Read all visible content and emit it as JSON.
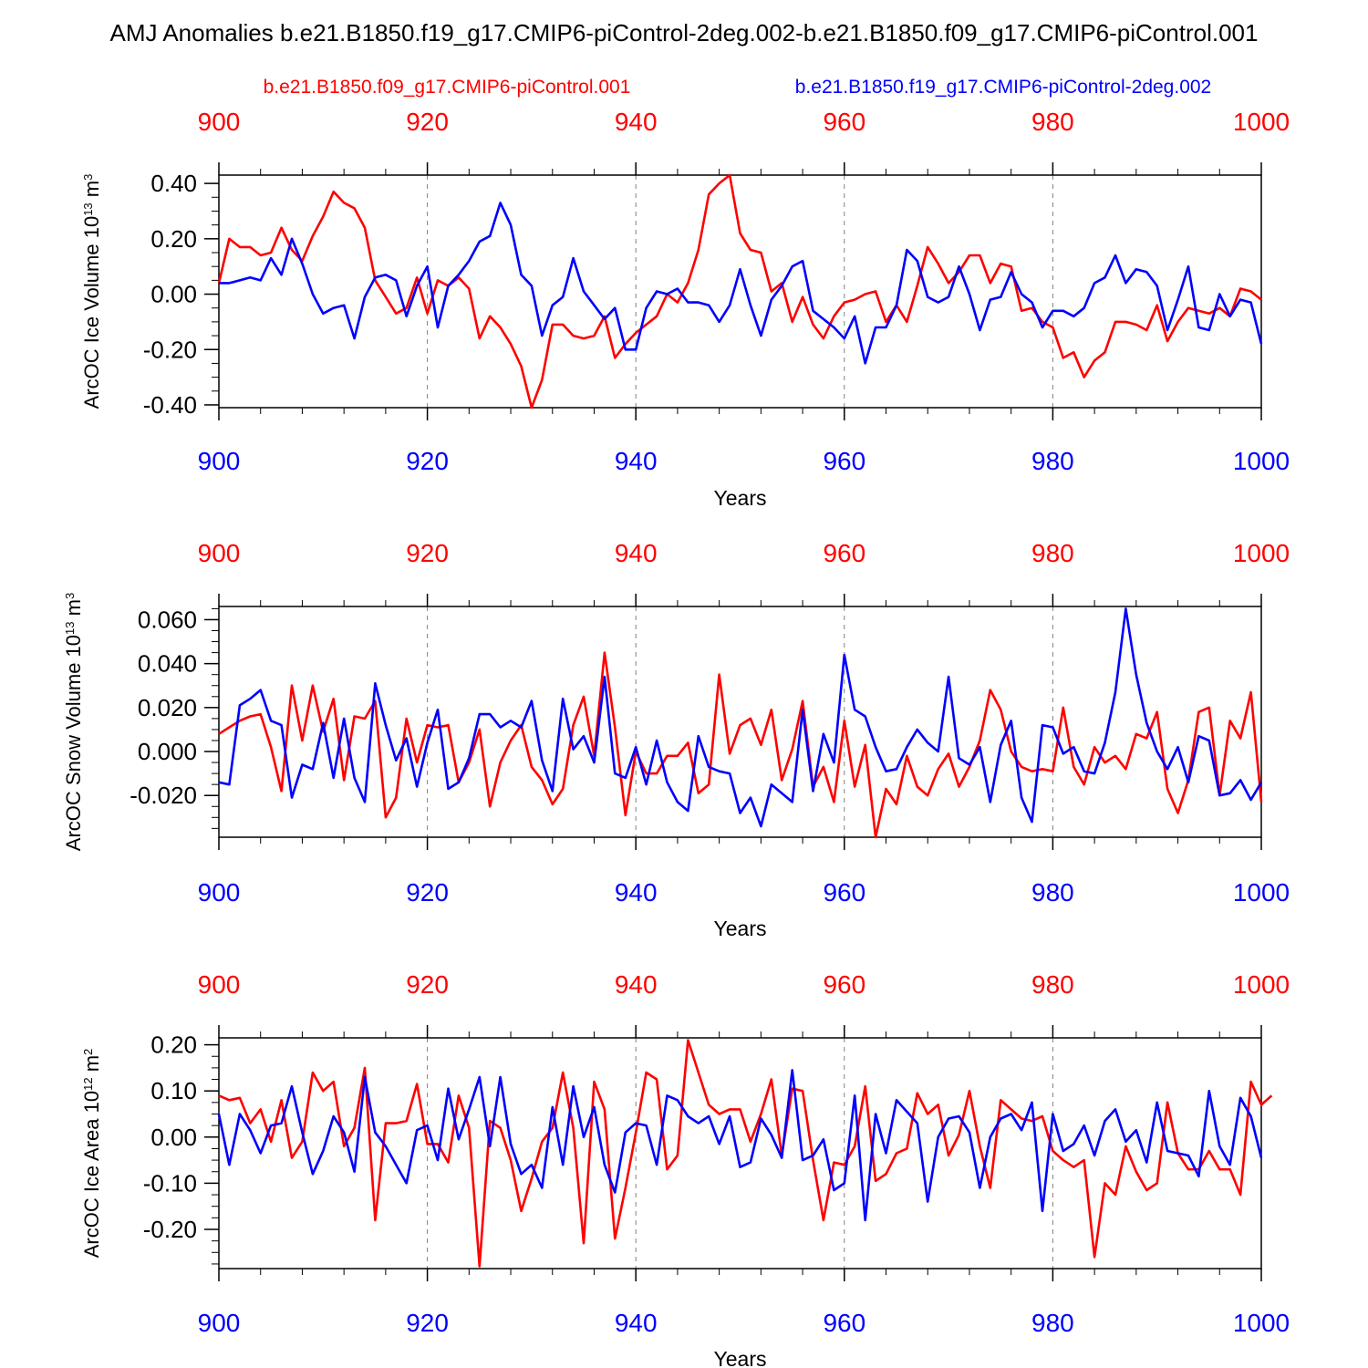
{
  "title": "AMJ Anomalies b.e21.B1850.f19_g17.CMIP6-piControl-2deg.002-b.e21.B1850.f09_g17.CMIP6-piControl.001",
  "legend": {
    "red_label": "b.e21.B1850.f09_g17.CMIP6-piControl.001",
    "blue_label": "b.e21.B1850.f19_g17.CMIP6-piControl-2deg.002"
  },
  "colors": {
    "red": "#ff0000",
    "blue": "#0000ff",
    "axis": "#000000",
    "grid": "#808080"
  },
  "chart_data": [
    {
      "type": "line",
      "ylabel": "ArcOC Ice Volume",
      "ylabel_unit_base": "10",
      "ylabel_unit_exp": "13",
      "ylabel_unit_m": "m",
      "ylabel_unit_pow": "3",
      "xlabel": "Years",
      "xlim": [
        900,
        1000
      ],
      "ylim": [
        -0.41,
        0.43
      ],
      "yticks": [
        -0.4,
        -0.2,
        0.0,
        0.2,
        0.4
      ],
      "ytick_labels": [
        "-0.40",
        "-0.20",
        "0.00",
        "0.20",
        "0.40"
      ],
      "yminor": 0.05,
      "xticks": [
        900,
        920,
        940,
        960,
        980,
        1000
      ],
      "xtick_labels": [
        "900",
        "920",
        "940",
        "960",
        "980",
        "1000"
      ],
      "x_start": 900,
      "series": [
        {
          "name": "b.e21.B1850.f09_g17.CMIP6-piControl.001",
          "color": "#ff0000",
          "values": [
            0.04,
            0.2,
            0.17,
            0.17,
            0.14,
            0.15,
            0.24,
            0.16,
            0.12,
            0.21,
            0.28,
            0.37,
            0.33,
            0.31,
            0.24,
            0.05,
            -0.01,
            -0.07,
            -0.05,
            0.06,
            -0.07,
            0.05,
            0.03,
            0.06,
            0.02,
            -0.16,
            -0.08,
            -0.12,
            -0.18,
            -0.26,
            -0.41,
            -0.31,
            -0.11,
            -0.11,
            -0.15,
            -0.16,
            -0.15,
            -0.08,
            -0.23,
            -0.18,
            -0.14,
            -0.11,
            -0.08,
            0.0,
            -0.03,
            0.04,
            0.16,
            0.36,
            0.4,
            0.43,
            0.22,
            0.16,
            0.15,
            0.01,
            0.04,
            -0.1,
            -0.01,
            -0.11,
            -0.16,
            -0.08,
            -0.03,
            -0.02,
            0.0,
            0.01,
            -0.1,
            -0.04,
            -0.1,
            0.03,
            0.17,
            0.11,
            0.04,
            0.08,
            0.14,
            0.14,
            0.04,
            0.11,
            0.1,
            -0.06,
            -0.05,
            -0.1,
            -0.12,
            -0.23,
            -0.21,
            -0.3,
            -0.24,
            -0.21,
            -0.1,
            -0.1,
            -0.11,
            -0.13,
            -0.04,
            -0.17,
            -0.1,
            -0.05,
            -0.06,
            -0.07,
            -0.05,
            -0.08,
            0.02,
            0.01,
            -0.02
          ]
        },
        {
          "name": "b.e21.B1850.f19_g17.CMIP6-piControl-2deg.002",
          "color": "#0000ff",
          "values": [
            0.04,
            0.04,
            0.05,
            0.06,
            0.05,
            0.13,
            0.07,
            0.2,
            0.11,
            0.0,
            -0.07,
            -0.05,
            -0.04,
            -0.16,
            -0.01,
            0.06,
            0.07,
            0.05,
            -0.08,
            0.03,
            0.1,
            -0.12,
            0.03,
            0.07,
            0.12,
            0.19,
            0.21,
            0.33,
            0.25,
            0.07,
            0.03,
            -0.15,
            -0.04,
            -0.01,
            0.13,
            0.01,
            -0.04,
            -0.09,
            -0.05,
            -0.2,
            -0.2,
            -0.05,
            0.01,
            0.0,
            0.02,
            -0.03,
            -0.03,
            -0.04,
            -0.1,
            -0.04,
            0.09,
            -0.04,
            -0.15,
            -0.02,
            0.03,
            0.1,
            0.12,
            -0.06,
            -0.09,
            -0.12,
            -0.16,
            -0.08,
            -0.25,
            -0.12,
            -0.12,
            -0.04,
            0.16,
            0.12,
            -0.01,
            -0.03,
            -0.01,
            0.1,
            0.0,
            -0.13,
            -0.02,
            -0.01,
            0.08,
            0.0,
            -0.03,
            -0.12,
            -0.06,
            -0.06,
            -0.08,
            -0.05,
            0.04,
            0.06,
            0.14,
            0.04,
            0.09,
            0.08,
            0.03,
            -0.13,
            -0.02,
            0.1,
            -0.12,
            -0.13,
            0.0,
            -0.08,
            -0.02,
            -0.03,
            -0.18
          ]
        }
      ]
    },
    {
      "type": "line",
      "ylabel": "ArcOC Snow Volume",
      "ylabel_unit_base": "10",
      "ylabel_unit_exp": "13",
      "ylabel_unit_m": "m",
      "ylabel_unit_pow": "3",
      "xlabel": "Years",
      "xlim": [
        900,
        1000
      ],
      "ylim": [
        -0.039,
        0.066
      ],
      "yticks": [
        -0.02,
        0.0,
        0.02,
        0.04,
        0.06
      ],
      "ytick_labels": [
        "-0.020",
        "0.000",
        "0.020",
        "0.040",
        "0.060"
      ],
      "yminor": 0.005,
      "xticks": [
        900,
        920,
        940,
        960,
        980,
        1000
      ],
      "xtick_labels": [
        "900",
        "920",
        "940",
        "960",
        "980",
        "1000"
      ],
      "x_start": 900,
      "series": [
        {
          "name": "b.e21.B1850.f09_g17.CMIP6-piControl.001",
          "color": "#ff0000",
          "values": [
            0.008,
            0.011,
            0.014,
            0.016,
            0.017,
            0.002,
            -0.018,
            0.03,
            0.005,
            0.03,
            0.009,
            0.024,
            -0.013,
            0.016,
            0.015,
            0.023,
            -0.03,
            -0.021,
            0.015,
            -0.005,
            0.012,
            0.011,
            0.012,
            -0.014,
            -0.005,
            0.01,
            -0.025,
            -0.005,
            0.005,
            0.012,
            -0.007,
            -0.013,
            -0.024,
            -0.017,
            0.012,
            0.025,
            -0.002,
            0.045,
            0.011,
            -0.029,
            0.0,
            -0.01,
            -0.01,
            -0.002,
            -0.002,
            0.004,
            -0.019,
            -0.015,
            0.035,
            -0.001,
            0.012,
            0.015,
            0.003,
            0.019,
            -0.013,
            0.001,
            0.023,
            -0.016,
            -0.007,
            -0.023,
            0.014,
            -0.016,
            0.003,
            -0.039,
            -0.017,
            -0.024,
            -0.002,
            -0.016,
            -0.02,
            -0.008,
            -0.001,
            -0.016,
            -0.007,
            0.005,
            0.028,
            0.019,
            0.0,
            -0.007,
            -0.009,
            -0.008,
            -0.009,
            0.02,
            -0.007,
            -0.015,
            0.002,
            -0.005,
            -0.002,
            -0.008,
            0.008,
            0.006,
            0.018,
            -0.017,
            -0.028,
            -0.013,
            0.018,
            0.02,
            -0.02,
            0.014,
            0.006,
            0.027,
            -0.023
          ]
        },
        {
          "name": "b.e21.B1850.f19_g17.CMIP6-piControl-2deg.002",
          "color": "#0000ff",
          "values": [
            -0.014,
            -0.015,
            0.021,
            0.024,
            0.028,
            0.014,
            0.012,
            -0.021,
            -0.006,
            -0.008,
            0.013,
            -0.012,
            0.015,
            -0.012,
            -0.023,
            0.031,
            0.012,
            -0.004,
            0.006,
            -0.016,
            0.004,
            0.019,
            -0.017,
            -0.014,
            -0.003,
            0.017,
            0.017,
            0.011,
            0.014,
            0.011,
            0.023,
            -0.004,
            -0.018,
            0.024,
            0.001,
            0.007,
            -0.005,
            0.034,
            -0.01,
            -0.012,
            0.002,
            -0.015,
            0.005,
            -0.014,
            -0.023,
            -0.027,
            0.007,
            -0.007,
            -0.009,
            -0.01,
            -0.028,
            -0.021,
            -0.034,
            -0.015,
            -0.019,
            -0.023,
            0.019,
            -0.018,
            0.008,
            -0.005,
            0.044,
            0.019,
            0.016,
            0.002,
            -0.009,
            -0.008,
            0.002,
            0.01,
            0.004,
            0.0,
            0.034,
            -0.003,
            -0.006,
            0.002,
            -0.023,
            0.003,
            0.014,
            -0.021,
            -0.032,
            0.012,
            0.011,
            -0.001,
            0.002,
            -0.009,
            -0.01,
            0.004,
            0.027,
            0.065,
            0.035,
            0.013,
            0.0,
            -0.008,
            0.002,
            -0.014,
            0.007,
            0.005,
            -0.02,
            -0.019,
            -0.013,
            -0.022,
            -0.014
          ]
        }
      ]
    },
    {
      "type": "line",
      "ylabel": "ArcOC Ice Area",
      "ylabel_unit_base": "10",
      "ylabel_unit_exp": "12",
      "ylabel_unit_m": "m",
      "ylabel_unit_pow": "2",
      "xlabel": "Years",
      "xlim": [
        900,
        1000
      ],
      "ylim": [
        -0.285,
        0.215
      ],
      "yticks": [
        -0.2,
        -0.1,
        0.0,
        0.1,
        0.2
      ],
      "ytick_labels": [
        "-0.20",
        "-0.10",
        "0.00",
        "0.10",
        "0.20"
      ],
      "yminor": 0.025,
      "xticks": [
        900,
        920,
        940,
        960,
        980,
        1000
      ],
      "xtick_labels": [
        "900",
        "920",
        "940",
        "960",
        "980",
        "1000"
      ],
      "x_start": 900,
      "series": [
        {
          "name": "b.e21.B1850.f09_g17.CMIP6-piControl.001",
          "color": "#ff0000",
          "values": [
            0.09,
            0.08,
            0.085,
            0.03,
            0.06,
            -0.01,
            0.08,
            -0.045,
            -0.01,
            0.14,
            0.1,
            0.12,
            -0.02,
            0.02,
            0.15,
            -0.18,
            0.03,
            0.03,
            0.035,
            0.115,
            -0.015,
            -0.015,
            -0.055,
            0.09,
            0.02,
            -0.28,
            0.035,
            0.02,
            -0.05,
            -0.16,
            -0.09,
            -0.01,
            0.02,
            0.14,
            0.02,
            -0.23,
            0.12,
            0.06,
            -0.22,
            -0.11,
            0.01,
            0.14,
            0.125,
            -0.07,
            -0.04,
            0.21,
            0.14,
            0.07,
            0.05,
            0.06,
            0.06,
            -0.01,
            0.05,
            0.125,
            -0.04,
            0.105,
            0.1,
            -0.05,
            -0.18,
            -0.055,
            -0.06,
            -0.02,
            0.11,
            -0.095,
            -0.08,
            -0.035,
            -0.025,
            0.095,
            0.05,
            0.07,
            -0.04,
            0.005,
            0.1,
            -0.02,
            -0.11,
            0.08,
            0.06,
            0.04,
            0.035,
            0.045,
            -0.03,
            -0.05,
            -0.065,
            -0.05,
            -0.26,
            -0.1,
            -0.125,
            -0.02,
            -0.075,
            -0.115,
            -0.1,
            0.075,
            -0.035,
            -0.07,
            -0.07,
            -0.03,
            -0.07,
            -0.07,
            -0.125,
            0.12,
            0.07,
            0.09
          ]
        },
        {
          "name": "b.e21.B1850.f19_g17.CMIP6-piControl-2deg.002",
          "color": "#0000ff",
          "values": [
            0.05,
            -0.06,
            0.05,
            0.015,
            -0.035,
            0.025,
            0.03,
            0.11,
            0.01,
            -0.08,
            -0.03,
            0.045,
            0.01,
            -0.075,
            0.13,
            0.01,
            -0.02,
            -0.06,
            -0.1,
            0.015,
            0.025,
            -0.05,
            0.105,
            -0.005,
            0.06,
            0.13,
            -0.02,
            0.13,
            -0.015,
            -0.08,
            -0.06,
            -0.11,
            0.065,
            -0.06,
            0.11,
            0.0,
            0.065,
            -0.06,
            -0.12,
            0.01,
            0.03,
            0.025,
            -0.06,
            0.09,
            0.08,
            0.045,
            0.03,
            0.045,
            -0.015,
            0.045,
            -0.065,
            -0.055,
            0.04,
            0.005,
            -0.045,
            0.145,
            -0.05,
            -0.04,
            -0.005,
            -0.115,
            -0.1,
            0.09,
            -0.18,
            0.05,
            -0.035,
            0.08,
            0.055,
            0.03,
            -0.14,
            0.0,
            0.04,
            0.045,
            0.01,
            -0.11,
            0.0,
            0.04,
            0.05,
            0.015,
            0.075,
            -0.16,
            0.05,
            -0.03,
            -0.015,
            0.025,
            -0.04,
            0.035,
            0.06,
            -0.01,
            0.015,
            -0.055,
            0.075,
            -0.03,
            -0.035,
            -0.04,
            -0.085,
            0.1,
            -0.02,
            -0.06,
            0.085,
            0.045,
            -0.045
          ]
        }
      ]
    }
  ]
}
